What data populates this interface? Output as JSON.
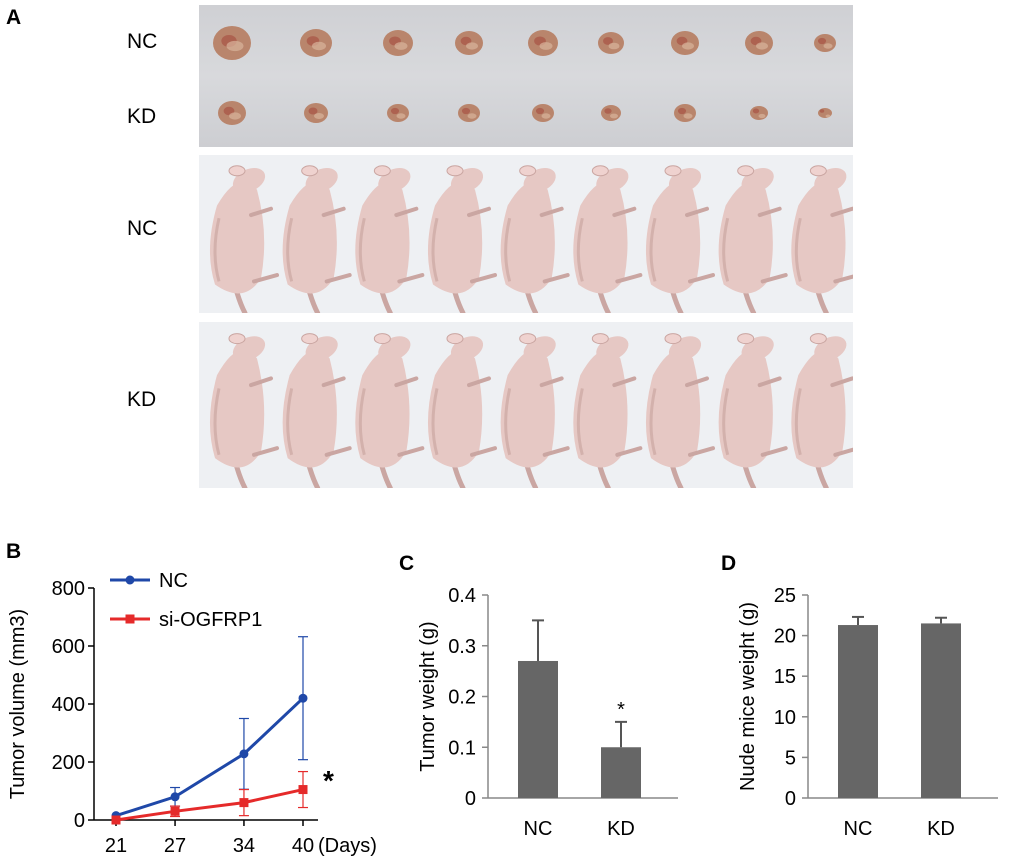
{
  "panel_a": {
    "letter": "A",
    "tumor_rows": [
      {
        "label": "NC",
        "count": 9
      },
      {
        "label": "KD",
        "count": 9
      }
    ],
    "mice_rows": [
      {
        "label": "NC",
        "count": 9
      },
      {
        "label": "KD",
        "count": 9
      }
    ],
    "colors": {
      "tray": "#d4d5d8",
      "tumor": "#b9856c",
      "mouse": "#e6c8c4",
      "mouse_shadow": "#caa6a2",
      "plate": "#f1f2f5"
    }
  },
  "chart_data": [
    {
      "panel": "B",
      "type": "line",
      "title": "",
      "ylabel": "Tumor volume (mm3)",
      "xlabel": "(Days)",
      "x": [
        21,
        27,
        34,
        40
      ],
      "ylim": [
        0,
        800
      ],
      "yticks": [
        0,
        200,
        400,
        600,
        800
      ],
      "series": [
        {
          "name": "NC",
          "values": [
            15,
            80,
            228,
            420
          ],
          "errors": [
            0,
            32,
            122,
            212
          ],
          "color": "#1f48a8",
          "marker": "circle"
        },
        {
          "name": "si-OGFRP1",
          "values": [
            0,
            30,
            60,
            105
          ],
          "errors": [
            0,
            18,
            45,
            62
          ],
          "color": "#e52a2a",
          "marker": "square"
        }
      ],
      "annotation": "*"
    },
    {
      "panel": "C",
      "type": "bar",
      "title": "",
      "ylabel": "Tumor weight (g)",
      "categories": [
        "NC",
        "KD"
      ],
      "values": [
        0.27,
        0.1
      ],
      "errors": [
        0.08,
        0.05
      ],
      "ylim": [
        0,
        0.4
      ],
      "yticks": [
        "0",
        "0.1",
        "0.2",
        "0.3",
        "0.4"
      ],
      "bar_color": "#666666",
      "annotation": "*"
    },
    {
      "panel": "D",
      "type": "bar",
      "title": "",
      "ylabel": "Nude mice weight (g)",
      "categories": [
        "NC",
        "KD"
      ],
      "values": [
        21.3,
        21.5
      ],
      "errors": [
        1.0,
        0.7
      ],
      "ylim": [
        0,
        25
      ],
      "yticks": [
        "0",
        "5",
        "10",
        "15",
        "20",
        "25"
      ],
      "bar_color": "#666666"
    }
  ]
}
